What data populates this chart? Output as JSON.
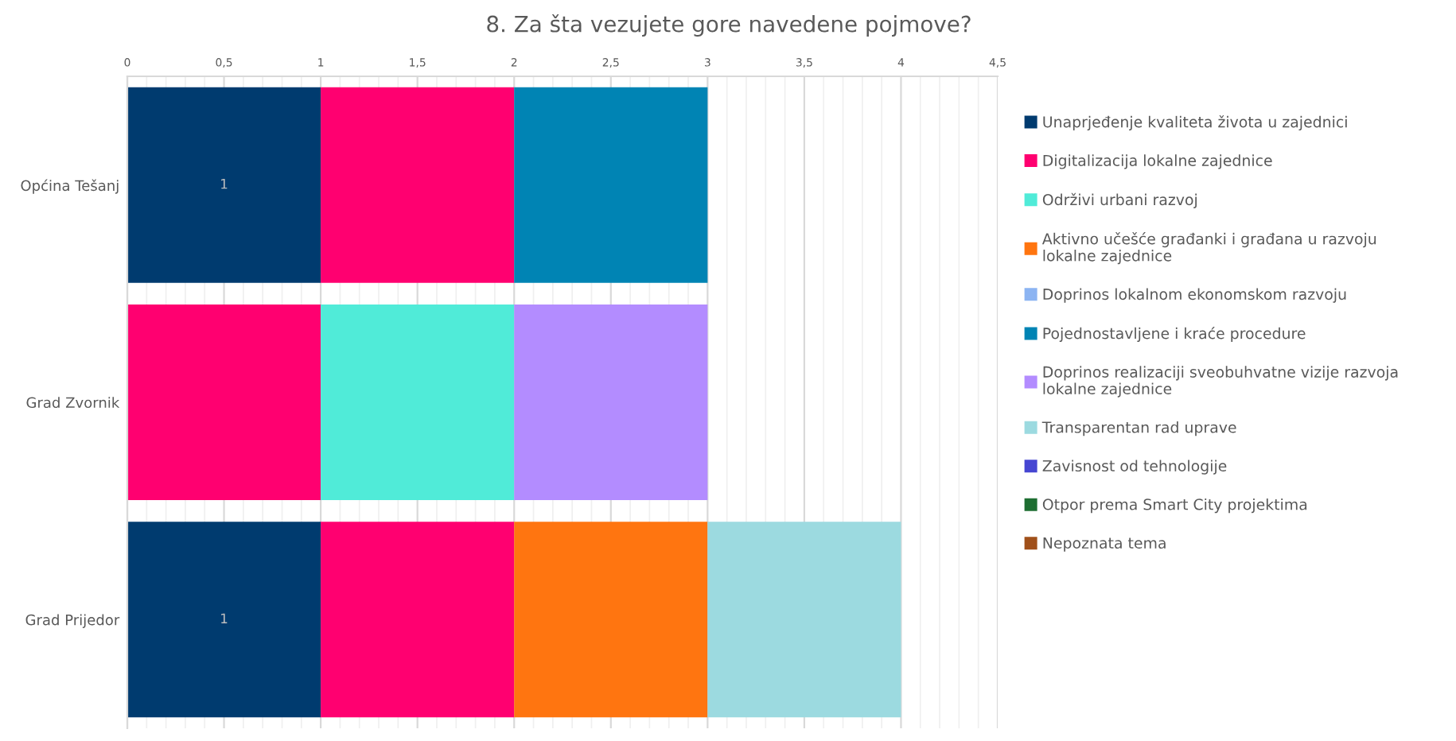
{
  "chart_data": {
    "type": "bar",
    "orientation": "horizontal",
    "stacked": true,
    "title": "8. Za šta vezujete gore navedene pojmove?",
    "categories": [
      "Općina Tešanj",
      "Grad Zvornik",
      "Grad Prijedor"
    ],
    "series": [
      {
        "name": "Unaprjeđenje kvaliteta života u zajednici",
        "color": "#003b6f",
        "values": [
          1,
          null,
          1
        ],
        "value_labels": [
          "1",
          null,
          "1"
        ]
      },
      {
        "name": "Digitalizacija lokalne zajednice",
        "color": "#ff0070",
        "values": [
          1,
          1,
          1
        ]
      },
      {
        "name": "Održivi urbani razvoj",
        "color": "#50ebd8",
        "values": [
          null,
          1,
          null
        ]
      },
      {
        "name": "Aktivno učešće građanki i građana u razvoju lokalne zajednice",
        "color": "#ff7510",
        "values": [
          null,
          null,
          1
        ]
      },
      {
        "name": "Doprinos lokalnom ekonomskom razvoju",
        "color": "#8cb4f2",
        "values": [
          null,
          null,
          null
        ]
      },
      {
        "name": "Pojednostavljene i kraće procedure",
        "color": "#0084b4",
        "values": [
          1,
          null,
          null
        ]
      },
      {
        "name": "Doprinos realizaciji sveobuhvatne vizije razvoja lokalne zajednice",
        "color": "#b38cff",
        "values": [
          null,
          1,
          null
        ]
      },
      {
        "name": "Transparentan rad uprave",
        "color": "#9cdae0",
        "values": [
          null,
          null,
          1
        ]
      },
      {
        "name": "Zavisnost od tehnologije",
        "color": "#4646d2",
        "values": [
          null,
          null,
          null
        ]
      },
      {
        "name": "Otpor prema Smart City projektima",
        "color": "#1e6e32",
        "values": [
          null,
          null,
          null
        ]
      },
      {
        "name": "Nepoznata tema",
        "color": "#a0501a",
        "values": [
          null,
          null,
          null
        ]
      }
    ],
    "xlim": [
      0,
      4.5
    ],
    "xticks": [
      0,
      {
        "value": 0.5,
        "label": "0,5"
      },
      1,
      {
        "value": 1.5,
        "label": "1,5"
      },
      2,
      {
        "value": 2.5,
        "label": "2,5"
      },
      3,
      {
        "value": 3.5,
        "label": "3,5"
      },
      4,
      {
        "value": 4.5,
        "label": "4,5"
      }
    ],
    "grid": "x",
    "legend": "right"
  }
}
